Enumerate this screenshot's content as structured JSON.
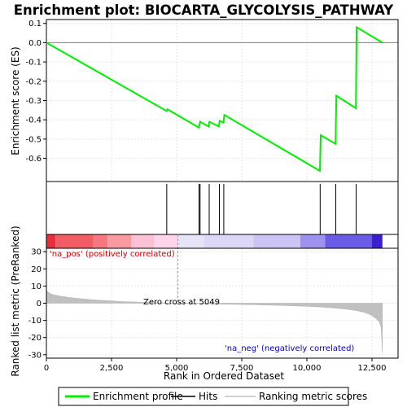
{
  "chart_data": {
    "title": "Enrichment plot: BIOCARTA_GLYCOLYSIS_PATHWAY",
    "es_panel": {
      "type": "line",
      "ylabel": "Enrichment score (ES)",
      "ylim": [
        -0.72,
        0.12
      ],
      "yticks": [
        0.1,
        0.0,
        -0.1,
        -0.2,
        -0.3,
        -0.4,
        -0.5,
        -0.6
      ],
      "ytick_labels": [
        "0.1",
        "0.0",
        "-0.1",
        "-0.2",
        "-0.3",
        "-0.4",
        "-0.5",
        "-0.6"
      ],
      "series": [
        {
          "name": "Enrichment profile",
          "color": "#00ee00",
          "x": [
            0,
            4620,
            4650,
            4700,
            5850,
            5880,
            5900,
            6230,
            6260,
            6620,
            6650,
            6800,
            6830,
            10500,
            10530,
            11100,
            11130,
            11880,
            11910,
            12900
          ],
          "y": [
            0.0,
            -0.355,
            -0.345,
            -0.35,
            -0.44,
            -0.425,
            -0.41,
            -0.435,
            -0.41,
            -0.435,
            -0.405,
            -0.415,
            -0.375,
            -0.665,
            -0.48,
            -0.525,
            -0.275,
            -0.34,
            0.08,
            0.0
          ]
        }
      ]
    },
    "hits": {
      "name": "Hits",
      "positions": [
        4620,
        5860,
        5900,
        6250,
        6640,
        6810,
        10510,
        11110,
        11890
      ]
    },
    "color_bar": {
      "segments": [
        {
          "from": 0,
          "to": 350,
          "color": "#e8303a"
        },
        {
          "from": 350,
          "to": 1800,
          "color": "#f25c63"
        },
        {
          "from": 1800,
          "to": 2350,
          "color": "#f6787e"
        },
        {
          "from": 2350,
          "to": 3250,
          "color": "#f99aa0"
        },
        {
          "from": 3250,
          "to": 4150,
          "color": "#fbc2d6"
        },
        {
          "from": 4150,
          "to": 5050,
          "color": "#fdd4ea"
        },
        {
          "from": 5050,
          "to": 6050,
          "color": "#e8e4f8"
        },
        {
          "from": 6050,
          "to": 7950,
          "color": "#dcd6f7"
        },
        {
          "from": 7950,
          "to": 9750,
          "color": "#cbc4f4"
        },
        {
          "from": 9750,
          "to": 10700,
          "color": "#9d93ee"
        },
        {
          "from": 10700,
          "to": 12500,
          "color": "#6a5ce6"
        },
        {
          "from": 12500,
          "to": 12900,
          "color": "#3a1fd0"
        }
      ]
    },
    "metric_panel": {
      "type": "area",
      "name": "Ranking metric scores",
      "ylabel": "Ranked list metric (PreRanked)",
      "xlabel": "Rank in Ordered Dataset",
      "xlim": [
        0,
        13500
      ],
      "ylim": [
        -32,
        32
      ],
      "xticks": [
        0,
        2500,
        5000,
        7500,
        10000,
        12500
      ],
      "xtick_labels": [
        "0",
        "2,500",
        "5,000",
        "7,500",
        "10,000",
        "12,500"
      ],
      "yticks": [
        30,
        20,
        10,
        0,
        -10,
        -20,
        -30
      ],
      "ytick_labels": [
        "30",
        "20",
        "10",
        "0",
        "-10",
        "-20",
        "-30"
      ],
      "x": [
        0,
        30,
        100,
        250,
        500,
        800,
        1200,
        1700,
        2300,
        3000,
        3800,
        4500,
        5049,
        6000,
        7000,
        8000,
        9000,
        9800,
        10500,
        11000,
        11500,
        11900,
        12200,
        12450,
        12650,
        12780,
        12850,
        12900
      ],
      "y": [
        8.0,
        7.0,
        6.0,
        5.0,
        4.2,
        3.5,
        2.8,
        2.1,
        1.5,
        0.9,
        0.5,
        0.2,
        0.0,
        -0.3,
        -0.6,
        -0.9,
        -1.3,
        -1.7,
        -2.2,
        -2.7,
        -3.4,
        -4.3,
        -5.3,
        -6.8,
        -8.8,
        -11.0,
        -14.0,
        -29.0
      ],
      "fill": "#c0c0c0",
      "zero_cross": 5049,
      "annotations": {
        "pos": "'na_pos' (positively correlated)",
        "neg": "'na_neg' (negatively correlated)",
        "zero": "Zero cross at 5049"
      }
    },
    "legend": {
      "items": [
        {
          "label": "Enrichment profile",
          "color": "#00ee00"
        },
        {
          "label": "Hits",
          "color": "#000000"
        },
        {
          "label": "Ranking metric scores",
          "color": "#c0c0c0"
        }
      ]
    }
  }
}
